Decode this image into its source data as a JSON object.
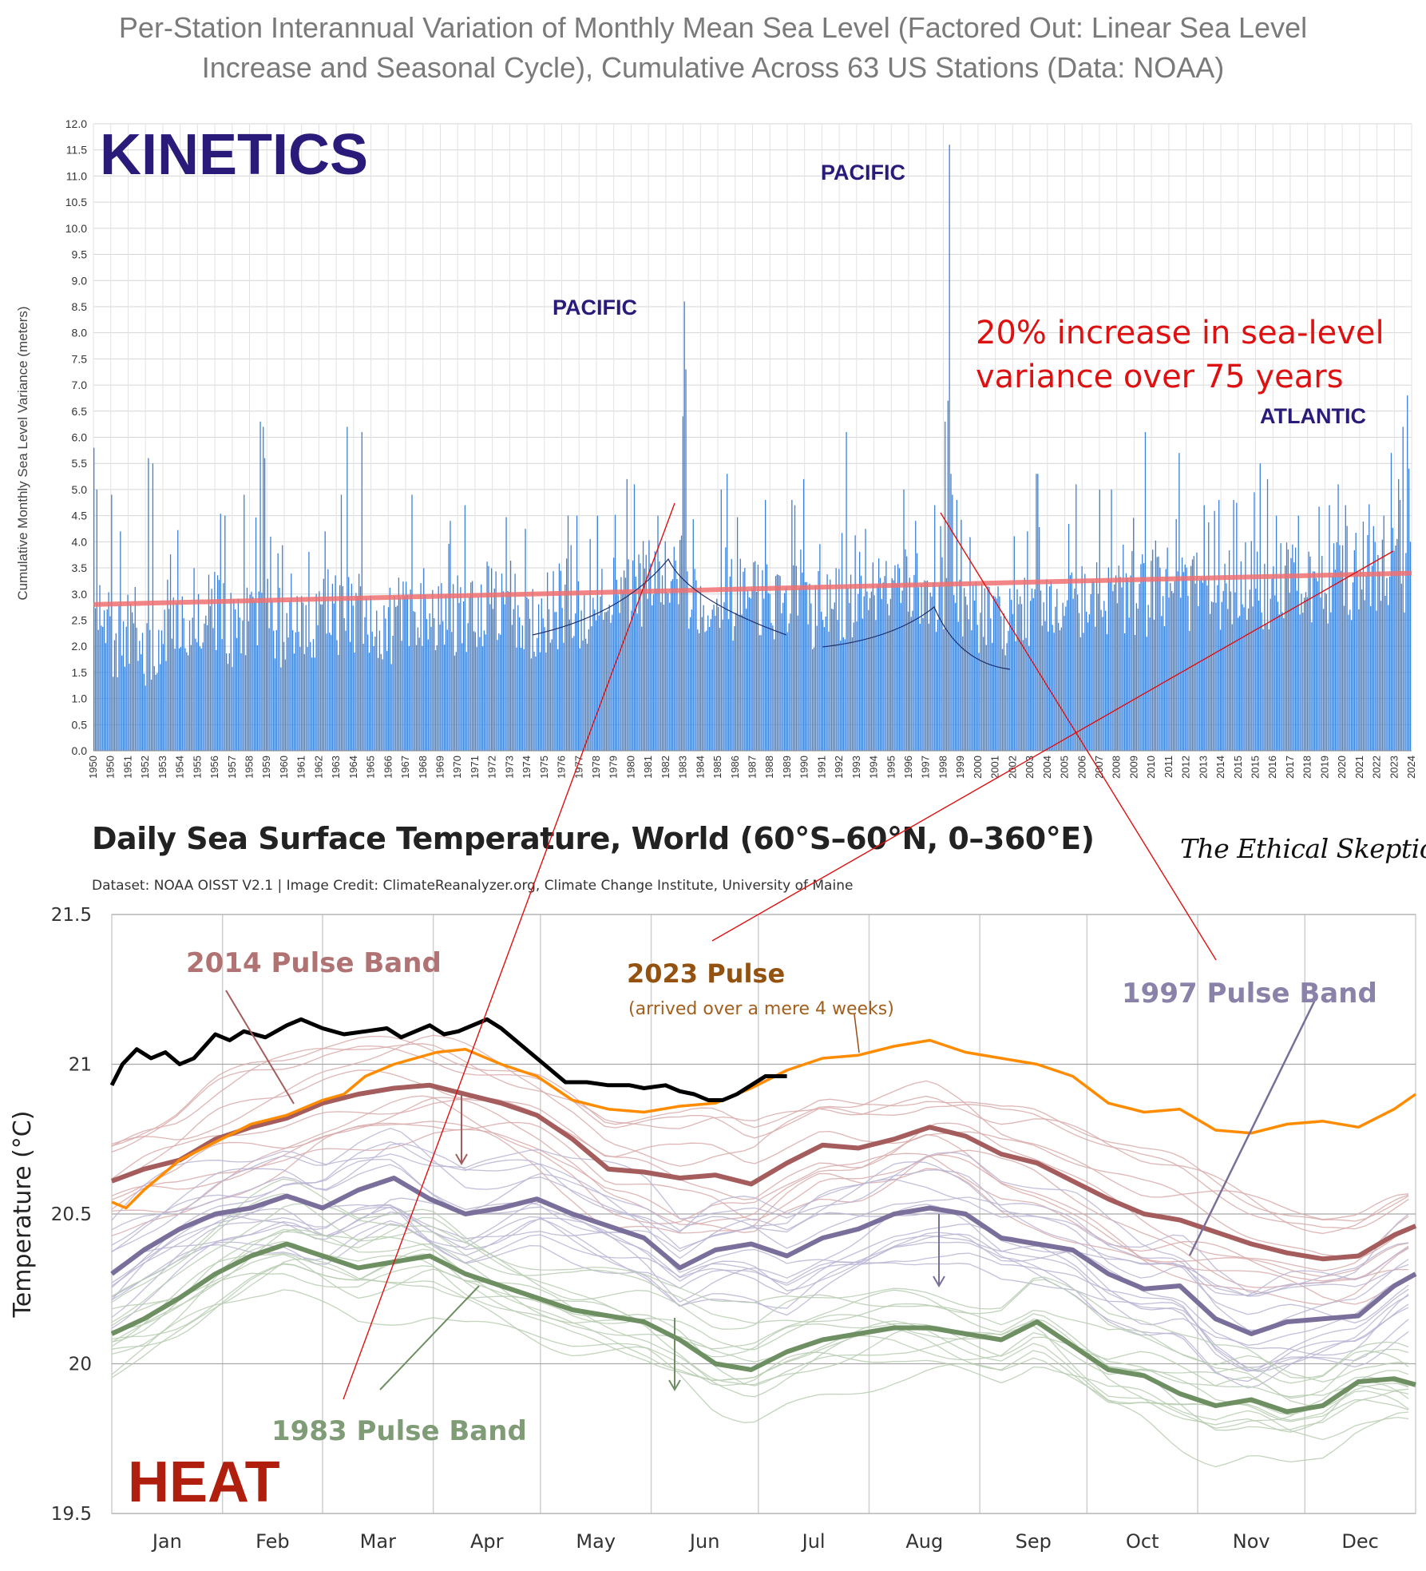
{
  "title": {
    "line1": "Per-Station Interannual Variation of Monthly Mean Sea Level (Factored Out: Linear Sea Level",
    "line2": "Increase and Seasonal Cycle), Cumulative Across 63 US Stations (Data: NOAA)"
  },
  "chart_data": [
    {
      "type": "bar",
      "panel_label": "KINETICS",
      "ylabel": "Cumulative Monthly Sea Level Variance (meters)",
      "xlabel": "",
      "ylim": [
        0,
        12
      ],
      "y_ticks": [
        "0.0",
        "0.5",
        "1.0",
        "1.5",
        "2.0",
        "2.5",
        "3.0",
        "3.5",
        "4.0",
        "4.5",
        "5.0",
        "5.5",
        "6.0",
        "6.5",
        "7.0",
        "7.5",
        "8.0",
        "8.5",
        "9.0",
        "9.5",
        "10.0",
        "10.5",
        "11.0",
        "11.5",
        "12.0"
      ],
      "x_ticks": [
        "1950",
        "1950",
        "1951",
        "1952",
        "1953",
        "1954",
        "1955",
        "1956",
        "1957",
        "1958",
        "1959",
        "1960",
        "1961",
        "1962",
        "1963",
        "1964",
        "1965",
        "1966",
        "1967",
        "1968",
        "1969",
        "1970",
        "1971",
        "1972",
        "1973",
        "1974",
        "1975",
        "1976",
        "1977",
        "1978",
        "1979",
        "1980",
        "1981",
        "1982",
        "1983",
        "1984",
        "1985",
        "1986",
        "1987",
        "1988",
        "1989",
        "1990",
        "1991",
        "1992",
        "1993",
        "1994",
        "1995",
        "1996",
        "1997",
        "1998",
        "1999",
        "2000",
        "2001",
        "2002",
        "2003",
        "2004",
        "2005",
        "2006",
        "2007",
        "2008",
        "2009",
        "2010",
        "2011",
        "2012",
        "2013",
        "2014",
        "2015",
        "2015",
        "2016",
        "2017",
        "2018",
        "2019",
        "2020",
        "2021",
        "2022",
        "2023",
        "2024"
      ],
      "grid": true,
      "bar_color": "#3a7fd8",
      "x_start": 1950.0,
      "x_end": 2024.6,
      "baseline_values": [
        2.6,
        2.0,
        2.2,
        1.7,
        2.1,
        2.4,
        2.6,
        2.7,
        2.3,
        2.4,
        2.5,
        2.3,
        2.4,
        2.6,
        2.6,
        2.5,
        2.4,
        2.4,
        2.6,
        2.7,
        2.7,
        2.6,
        2.7,
        2.9,
        2.8,
        2.5,
        2.6,
        2.7,
        2.7,
        2.8,
        2.9,
        3.0,
        3.3,
        3.6,
        3.0,
        2.8,
        2.8,
        2.9,
        2.9,
        2.9,
        2.8,
        2.7,
        2.7,
        2.8,
        2.9,
        2.9,
        3.0,
        3.2,
        3.2,
        2.9,
        2.6,
        2.6,
        2.4,
        2.5,
        2.6,
        2.7,
        2.8,
        2.9,
        2.9,
        2.9,
        2.9,
        3.0,
        3.0,
        3.0,
        3.0,
        3.0,
        3.1,
        3.1,
        3.1,
        3.2,
        3.2,
        3.2,
        3.2,
        3.3,
        3.4,
        3.6,
        3.3
      ],
      "peaks": [
        {
          "x": 1950.0,
          "y": 5.8
        },
        {
          "x": 1950.2,
          "y": 5.0
        },
        {
          "x": 1951.0,
          "y": 4.9
        },
        {
          "x": 1951.5,
          "y": 4.2
        },
        {
          "x": 1953.1,
          "y": 5.6
        },
        {
          "x": 1953.3,
          "y": 5.5
        },
        {
          "x": 1957.4,
          "y": 4.5
        },
        {
          "x": 1958.5,
          "y": 4.9
        },
        {
          "x": 1959.6,
          "y": 6.2
        },
        {
          "x": 1959.7,
          "y": 5.6
        },
        {
          "x": 1963.1,
          "y": 4.2
        },
        {
          "x": 1964.0,
          "y": 4.9
        },
        {
          "x": 1965.2,
          "y": 6.1
        },
        {
          "x": 1968.0,
          "y": 4.9
        },
        {
          "x": 1970.2,
          "y": 4.4
        },
        {
          "x": 1971.0,
          "y": 4.7
        },
        {
          "x": 1976.8,
          "y": 4.5
        },
        {
          "x": 1977.3,
          "y": 4.5
        },
        {
          "x": 1978.5,
          "y": 4.5
        },
        {
          "x": 1980.2,
          "y": 5.2
        },
        {
          "x": 1980.6,
          "y": 5.1
        },
        {
          "x": 1981.9,
          "y": 4.5
        },
        {
          "x": 1985.5,
          "y": 5.0
        },
        {
          "x": 1985.8,
          "y": 5.3
        },
        {
          "x": 1988.0,
          "y": 4.8
        },
        {
          "x": 1989.5,
          "y": 4.8
        },
        {
          "x": 1989.7,
          "y": 4.7
        },
        {
          "x": 1990.2,
          "y": 5.2
        },
        {
          "x": 1995.8,
          "y": 5.0
        },
        {
          "x": 1996.5,
          "y": 4.4
        },
        {
          "x": 1997.6,
          "y": 4.7
        },
        {
          "x": 1997.9,
          "y": 4.3
        },
        {
          "x": 1998.3,
          "y": 5.0
        },
        {
          "x": 1998.6,
          "y": 4.9
        },
        {
          "x": 1998.8,
          "y": 4.8
        },
        {
          "x": 2002.8,
          "y": 4.2
        },
        {
          "x": 2003.3,
          "y": 5.3
        },
        {
          "x": 2003.4,
          "y": 5.3
        },
        {
          "x": 2005.6,
          "y": 5.1
        },
        {
          "x": 2006.9,
          "y": 5.0
        },
        {
          "x": 2007.6,
          "y": 5.0
        },
        {
          "x": 2009.5,
          "y": 6.1
        },
        {
          "x": 2011.4,
          "y": 5.7
        },
        {
          "x": 2012.8,
          "y": 4.7
        },
        {
          "x": 2013.7,
          "y": 4.8
        },
        {
          "x": 2014.5,
          "y": 4.8
        },
        {
          "x": 2016.0,
          "y": 5.5
        },
        {
          "x": 2016.4,
          "y": 5.2
        },
        {
          "x": 2016.9,
          "y": 4.5
        },
        {
          "x": 2018.2,
          "y": 4.5
        },
        {
          "x": 2019.9,
          "y": 4.7
        },
        {
          "x": 2020.4,
          "y": 5.1
        },
        {
          "x": 2020.8,
          "y": 4.7
        },
        {
          "x": 2022.4,
          "y": 4.3
        },
        {
          "x": 2023.0,
          "y": 4.5
        },
        {
          "x": 2023.4,
          "y": 5.7
        },
        {
          "x": 2023.9,
          "y": 4.8
        },
        {
          "x": 2024.1,
          "y": 6.2
        },
        {
          "x": 2024.3,
          "y": 6.8
        },
        {
          "x": 2024.4,
          "y": 5.4
        }
      ],
      "spikes": [
        {
          "x": 1959.4,
          "y": 6.3
        },
        {
          "x": 1964.3,
          "y": 6.2
        },
        {
          "x": 1983.4,
          "y": 8.6
        },
        {
          "x": 1983.3,
          "y": 6.4
        },
        {
          "x": 1983.5,
          "y": 7.3
        },
        {
          "x": 1992.6,
          "y": 6.1
        },
        {
          "x": 1998.2,
          "y": 6.3
        },
        {
          "x": 1998.3,
          "y": 6.7
        },
        {
          "x": 1998.4,
          "y": 11.6
        },
        {
          "x": 1998.5,
          "y": 5.3
        }
      ],
      "trend_line": {
        "start": {
          "x": 1950.0,
          "y": 2.8
        },
        "end": {
          "x": 2024.6,
          "y": 3.4
        },
        "color": "#f07070"
      },
      "annotations": [
        "PACIFIC",
        "PACIFIC",
        "ATLANTIC"
      ],
      "note": "20% increase in sea-level variance over 75 years"
    },
    {
      "type": "line",
      "title": "Daily Sea Surface Temperature, World (60°S–60°N, 0–360°E)",
      "subtitle": "Dataset: NOAA OISST V2.1 | Image Credit: ClimateReanalyzer.org, Climate Change Institute, University of Maine",
      "panel_label": "HEAT",
      "ylabel": "Temperature (°C)",
      "xlabel": "",
      "ylim": [
        19.5,
        21.5
      ],
      "y_ticks": [
        "19.5",
        "20",
        "20.5",
        "21",
        "21.5"
      ],
      "categories": [
        "Jan",
        "Feb",
        "Mar",
        "Apr",
        "May",
        "Jun",
        "Jul",
        "Aug",
        "Sep",
        "Oct",
        "Nov",
        "Dec"
      ],
      "grid": true,
      "series": [
        {
          "name": "",
          "color": "#000000",
          "x": [
            1,
            4,
            8,
            12,
            16,
            20,
            24,
            30,
            34,
            38,
            44,
            50,
            54,
            60,
            66,
            72,
            78,
            82,
            86,
            90,
            94,
            98,
            102,
            106,
            110,
            116,
            122,
            128,
            134,
            140,
            146,
            150,
            156,
            160,
            164,
            168,
            172,
            176,
            180,
            184,
            190
          ],
          "values": [
            20.93,
            21.0,
            21.05,
            21.02,
            21.04,
            21.0,
            21.02,
            21.1,
            21.08,
            21.11,
            21.09,
            21.13,
            21.15,
            21.12,
            21.1,
            21.11,
            21.12,
            21.09,
            21.11,
            21.13,
            21.1,
            21.11,
            21.13,
            21.15,
            21.12,
            21.06,
            21.0,
            20.94,
            20.94,
            20.93,
            20.93,
            20.92,
            20.93,
            20.91,
            20.9,
            20.88,
            20.88,
            20.9,
            20.93,
            20.96,
            20.96
          ]
        },
        {
          "name": "2023 Pulse",
          "color": "#ff8c00",
          "x": [
            1,
            5,
            10,
            20,
            30,
            40,
            50,
            60,
            66,
            72,
            80,
            86,
            92,
            100,
            110,
            120,
            130,
            140,
            150,
            160,
            170,
            180,
            190,
            200,
            210,
            220,
            230,
            240,
            250,
            260,
            270,
            280,
            290,
            300,
            310,
            320,
            330,
            340,
            350,
            360,
            366
          ],
          "values": [
            20.54,
            20.52,
            20.58,
            20.68,
            20.74,
            20.8,
            20.83,
            20.88,
            20.9,
            20.96,
            21.0,
            21.02,
            21.04,
            21.05,
            21.0,
            20.96,
            20.88,
            20.85,
            20.84,
            20.86,
            20.87,
            20.92,
            20.98,
            21.02,
            21.03,
            21.06,
            21.08,
            21.04,
            21.02,
            21.0,
            20.96,
            20.87,
            20.84,
            20.85,
            20.78,
            20.77,
            20.8,
            20.81,
            20.79,
            20.85,
            20.9
          ]
        },
        {
          "name": "2014 Pulse Band",
          "color": "#a55c5c",
          "x": [
            1,
            10,
            20,
            30,
            40,
            50,
            60,
            70,
            80,
            90,
            100,
            110,
            120,
            130,
            140,
            150,
            160,
            170,
            180,
            190,
            200,
            210,
            220,
            230,
            240,
            250,
            260,
            270,
            280,
            290,
            300,
            310,
            320,
            330,
            340,
            350,
            360,
            366
          ],
          "values": [
            20.61,
            20.65,
            20.68,
            20.75,
            20.79,
            20.82,
            20.87,
            20.9,
            20.92,
            20.93,
            20.9,
            20.87,
            20.83,
            20.75,
            20.65,
            20.64,
            20.62,
            20.63,
            20.6,
            20.67,
            20.73,
            20.72,
            20.75,
            20.79,
            20.76,
            20.7,
            20.67,
            20.61,
            20.55,
            20.5,
            20.48,
            20.44,
            20.4,
            20.37,
            20.35,
            20.36,
            20.43,
            20.46
          ]
        },
        {
          "name": "1997 Pulse Band",
          "color": "#7a6f9b",
          "x": [
            1,
            10,
            20,
            30,
            40,
            50,
            60,
            70,
            80,
            90,
            100,
            110,
            120,
            130,
            140,
            150,
            160,
            170,
            180,
            190,
            200,
            210,
            220,
            230,
            240,
            250,
            260,
            270,
            280,
            290,
            300,
            310,
            320,
            330,
            340,
            350,
            360,
            366
          ],
          "values": [
            20.3,
            20.38,
            20.45,
            20.5,
            20.52,
            20.56,
            20.52,
            20.58,
            20.62,
            20.55,
            20.5,
            20.52,
            20.55,
            20.5,
            20.46,
            20.42,
            20.32,
            20.38,
            20.4,
            20.36,
            20.42,
            20.45,
            20.5,
            20.52,
            20.5,
            20.42,
            20.4,
            20.38,
            20.3,
            20.25,
            20.26,
            20.15,
            20.1,
            20.14,
            20.15,
            20.16,
            20.26,
            20.3
          ]
        },
        {
          "name": "1983 Pulse Band",
          "color": "#6d8f62",
          "x": [
            1,
            10,
            20,
            30,
            40,
            50,
            60,
            70,
            80,
            90,
            100,
            110,
            120,
            130,
            140,
            150,
            160,
            170,
            180,
            190,
            200,
            210,
            220,
            230,
            240,
            250,
            260,
            270,
            280,
            290,
            300,
            310,
            320,
            330,
            340,
            350,
            360,
            366
          ],
          "values": [
            20.1,
            20.15,
            20.22,
            20.3,
            20.36,
            20.4,
            20.36,
            20.32,
            20.34,
            20.36,
            20.3,
            20.26,
            20.22,
            20.18,
            20.16,
            20.14,
            20.08,
            20.0,
            19.98,
            20.04,
            20.08,
            20.1,
            20.12,
            20.12,
            20.1,
            20.08,
            20.14,
            20.06,
            19.98,
            19.96,
            19.9,
            19.86,
            19.88,
            19.84,
            19.86,
            19.94,
            19.95,
            19.93
          ]
        }
      ],
      "annotations": [
        "2014 Pulse Band",
        "2023 Pulse",
        "(arrived over a mere 4 weeks)",
        "1997 Pulse Band",
        "1983 Pulse Band"
      ],
      "watermark": "The Ethical Skeptic"
    }
  ],
  "colors": {
    "kinetics_label": "#2a1a7a",
    "heat_label": "#b01e0e",
    "note_red": "#dd1111",
    "pacific_blue": "#2a1a7a"
  }
}
